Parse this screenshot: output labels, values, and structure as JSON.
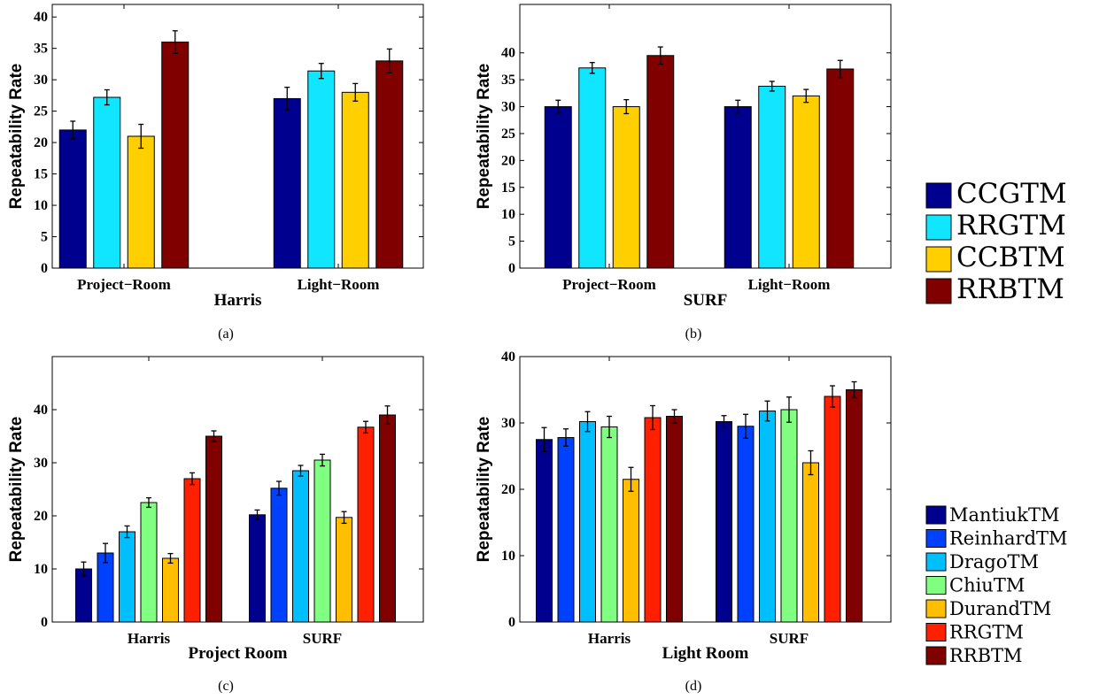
{
  "chart_data": [
    {
      "type": "bar",
      "panel": "a",
      "caption": "(a)",
      "categories": [
        "Project−Room",
        "Light−Room"
      ],
      "xlabel": "Harris",
      "ylabel": "Repeatability Rate",
      "ylim": [
        0,
        42
      ],
      "yticks": [
        0,
        5,
        10,
        15,
        20,
        25,
        30,
        35,
        40
      ],
      "legend": "right",
      "series": [
        {
          "name": "CCGTM",
          "color": "#00008f",
          "values": [
            22,
            27
          ],
          "errors": [
            1.4,
            1.8
          ]
        },
        {
          "name": "RRGTM",
          "color": "#10e6ff",
          "values": [
            27.2,
            31.4
          ],
          "errors": [
            1.2,
            1.2
          ]
        },
        {
          "name": "CCBTM",
          "color": "#ffcf00",
          "values": [
            21,
            28
          ],
          "errors": [
            1.9,
            1.4
          ]
        },
        {
          "name": "RRBTM",
          "color": "#800000",
          "values": [
            36,
            33
          ],
          "errors": [
            1.8,
            1.9
          ]
        }
      ]
    },
    {
      "type": "bar",
      "panel": "b",
      "caption": "(b)",
      "categories": [
        "Project−Room",
        "Light−Room"
      ],
      "xlabel": "SURF",
      "ylabel": "Repeatability Rate",
      "ylim": [
        0,
        49
      ],
      "yticks": [
        0,
        5,
        10,
        15,
        20,
        25,
        30,
        35,
        40
      ],
      "legend": "right",
      "series": [
        {
          "name": "CCGTM",
          "color": "#00008f",
          "values": [
            30,
            30
          ],
          "errors": [
            1.2,
            1.2
          ]
        },
        {
          "name": "RRGTM",
          "color": "#10e6ff",
          "values": [
            37.2,
            33.8
          ],
          "errors": [
            1.0,
            0.9
          ]
        },
        {
          "name": "CCBTM",
          "color": "#ffcf00",
          "values": [
            30,
            32
          ],
          "errors": [
            1.3,
            1.2
          ]
        },
        {
          "name": "RRBTM",
          "color": "#800000",
          "values": [
            39.5,
            37
          ],
          "errors": [
            1.6,
            1.6
          ]
        }
      ]
    },
    {
      "type": "bar",
      "panel": "c",
      "caption": "(c)",
      "categories": [
        "Harris",
        "SURF"
      ],
      "xlabel": "Project Room",
      "ylabel": "Repeatability Rate",
      "ylim": [
        0,
        50
      ],
      "yticks": [
        0,
        10,
        20,
        30,
        40
      ],
      "legend": "right",
      "series": [
        {
          "name": "MantiukTM",
          "color": "#00008f",
          "values": [
            10,
            20.2
          ],
          "errors": [
            1.3,
            0.9
          ]
        },
        {
          "name": "ReinhardTM",
          "color": "#0040ff",
          "values": [
            13,
            25.2
          ],
          "errors": [
            1.8,
            1.3
          ]
        },
        {
          "name": "DragoTM",
          "color": "#00bfff",
          "values": [
            17,
            28.5
          ],
          "errors": [
            1.1,
            1.0
          ]
        },
        {
          "name": "ChiuTM",
          "color": "#80ff80",
          "values": [
            22.5,
            30.5
          ],
          "errors": [
            0.9,
            1.1
          ]
        },
        {
          "name": "DurandTM",
          "color": "#ffbf00",
          "values": [
            12,
            19.7
          ],
          "errors": [
            0.9,
            1.1
          ]
        },
        {
          "name": "RRGTM",
          "color": "#ff2000",
          "values": [
            27,
            36.7
          ],
          "errors": [
            1.1,
            1.1
          ]
        },
        {
          "name": "RRBTM",
          "color": "#800000",
          "values": [
            35,
            39
          ],
          "errors": [
            1.0,
            1.7
          ]
        }
      ]
    },
    {
      "type": "bar",
      "panel": "d",
      "caption": "(d)",
      "categories": [
        "Harris",
        "SURF"
      ],
      "xlabel": "Light Room",
      "ylabel": "Repeatability Rate",
      "ylim": [
        0,
        40
      ],
      "yticks": [
        0,
        10,
        20,
        30,
        40
      ],
      "legend": "right",
      "series": [
        {
          "name": "MantiukTM",
          "color": "#00008f",
          "values": [
            27.5,
            30.2
          ],
          "errors": [
            1.8,
            0.9
          ]
        },
        {
          "name": "ReinhardTM",
          "color": "#0040ff",
          "values": [
            27.8,
            29.5
          ],
          "errors": [
            1.3,
            1.8
          ]
        },
        {
          "name": "DragoTM",
          "color": "#00bfff",
          "values": [
            30.2,
            31.8
          ],
          "errors": [
            1.5,
            1.5
          ]
        },
        {
          "name": "ChiuTM",
          "color": "#80ff80",
          "values": [
            29.4,
            32
          ],
          "errors": [
            1.6,
            1.9
          ]
        },
        {
          "name": "DurandTM",
          "color": "#ffbf00",
          "values": [
            21.5,
            24
          ],
          "errors": [
            1.8,
            1.8
          ]
        },
        {
          "name": "RRGTM",
          "color": "#ff2000",
          "values": [
            30.8,
            34
          ],
          "errors": [
            1.8,
            1.6
          ]
        },
        {
          "name": "RRBTM",
          "color": "#800000",
          "values": [
            31,
            35
          ],
          "errors": [
            1.0,
            1.2
          ]
        }
      ]
    }
  ],
  "legends": [
    {
      "entries": [
        "CCGTM",
        "RRGTM",
        "CCBTM",
        "RRBTM"
      ],
      "colors": [
        "#00008f",
        "#10e6ff",
        "#ffcf00",
        "#800000"
      ]
    },
    {
      "entries": [
        "MantiukTM",
        "ReinhardTM",
        "DragoTM",
        "ChiuTM",
        "DurandTM",
        "RRGTM",
        "RRBTM"
      ],
      "colors": [
        "#00008f",
        "#0040ff",
        "#00bfff",
        "#80ff80",
        "#ffbf00",
        "#ff2000",
        "#800000"
      ]
    }
  ]
}
